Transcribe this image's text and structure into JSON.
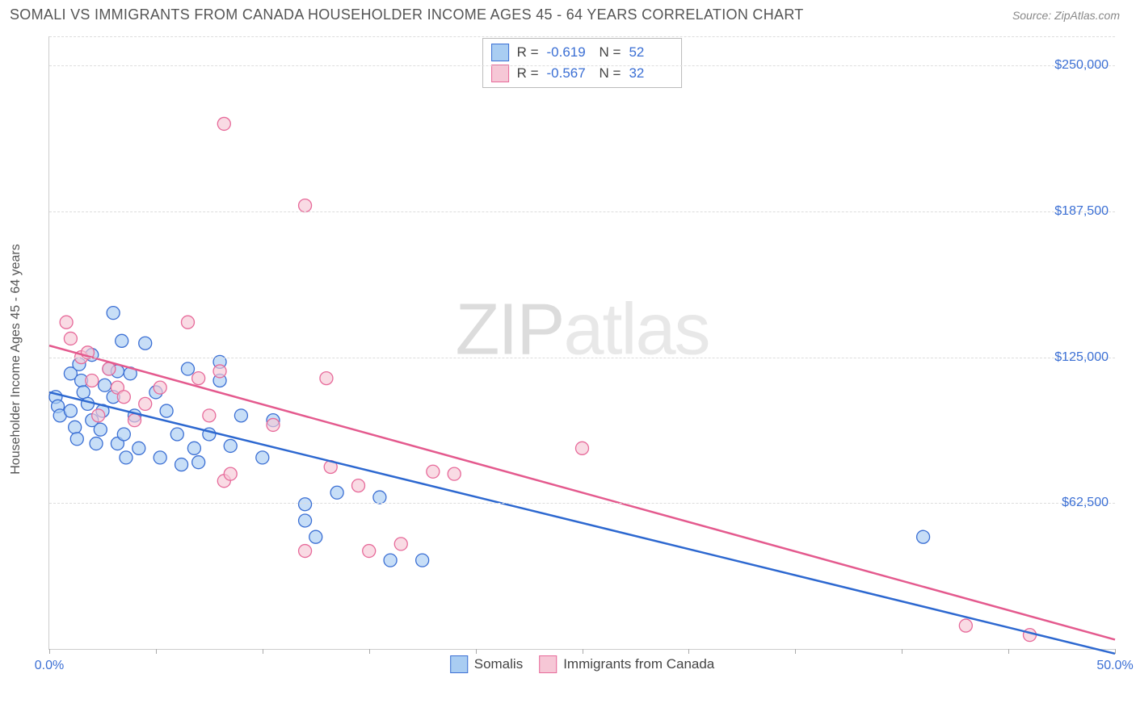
{
  "header": {
    "title": "SOMALI VS IMMIGRANTS FROM CANADA HOUSEHOLDER INCOME AGES 45 - 64 YEARS CORRELATION CHART",
    "source": "Source: ZipAtlas.com"
  },
  "watermark": {
    "zip": "ZIP",
    "atlas": "atlas"
  },
  "chart": {
    "type": "scatter",
    "ylabel": "Householder Income Ages 45 - 64 years",
    "xlim": [
      0,
      50
    ],
    "ylim": [
      0,
      262500
    ],
    "background_color": "#ffffff",
    "grid_color": "#dddddd",
    "grid_dash": true,
    "axis_color": "#cccccc",
    "tick_font_size": 16,
    "tick_color": "#3b6fd4",
    "label_color": "#555555",
    "label_font_size": 16,
    "marker_radius": 8,
    "marker_opacity": 0.65,
    "y_ticks": [
      {
        "value": 62500,
        "label": "$62,500"
      },
      {
        "value": 125000,
        "label": "$125,000"
      },
      {
        "value": 187500,
        "label": "$187,500"
      },
      {
        "value": 250000,
        "label": "$250,000"
      },
      {
        "value": 262500,
        "label": ""
      }
    ],
    "x_ticks": [
      {
        "value": 0,
        "label": "0.0%"
      },
      {
        "value": 5,
        "label": ""
      },
      {
        "value": 10,
        "label": ""
      },
      {
        "value": 15,
        "label": ""
      },
      {
        "value": 20,
        "label": ""
      },
      {
        "value": 25,
        "label": ""
      },
      {
        "value": 30,
        "label": ""
      },
      {
        "value": 35,
        "label": ""
      },
      {
        "value": 40,
        "label": ""
      },
      {
        "value": 45,
        "label": ""
      },
      {
        "value": 50,
        "label": "50.0%"
      }
    ],
    "series": [
      {
        "name": "Somalis",
        "fill_color": "#a9cdf2",
        "stroke_color": "#3b6fd4",
        "trend_line_color": "#2d68d0",
        "trend_line_width": 2.5,
        "R": "-0.619",
        "N": "52",
        "trend": {
          "x1": 0,
          "y1": 110000,
          "x2": 50,
          "y2": -2000
        },
        "points": [
          [
            0.3,
            108000
          ],
          [
            0.4,
            104000
          ],
          [
            0.5,
            100000
          ],
          [
            1,
            118000
          ],
          [
            1,
            102000
          ],
          [
            1.2,
            95000
          ],
          [
            1.3,
            90000
          ],
          [
            1.4,
            122000
          ],
          [
            1.5,
            115000
          ],
          [
            1.6,
            110000
          ],
          [
            1.8,
            105000
          ],
          [
            2,
            126000
          ],
          [
            2,
            98000
          ],
          [
            2.2,
            88000
          ],
          [
            2.4,
            94000
          ],
          [
            2.5,
            102000
          ],
          [
            2.6,
            113000
          ],
          [
            2.8,
            120000
          ],
          [
            3,
            144000
          ],
          [
            3,
            108000
          ],
          [
            3.2,
            88000
          ],
          [
            3.4,
            132000
          ],
          [
            3.5,
            92000
          ],
          [
            3.6,
            82000
          ],
          [
            3.8,
            118000
          ],
          [
            4,
            100000
          ],
          [
            4.2,
            86000
          ],
          [
            4.5,
            131000
          ],
          [
            5,
            110000
          ],
          [
            5.2,
            82000
          ],
          [
            5.5,
            102000
          ],
          [
            6,
            92000
          ],
          [
            6.2,
            79000
          ],
          [
            6.5,
            120000
          ],
          [
            6.8,
            86000
          ],
          [
            7,
            80000
          ],
          [
            7.5,
            92000
          ],
          [
            8,
            115000
          ],
          [
            8.5,
            87000
          ],
          [
            9,
            100000
          ],
          [
            10,
            82000
          ],
          [
            10.5,
            98000
          ],
          [
            12,
            62000
          ],
          [
            12,
            55000
          ],
          [
            12.5,
            48000
          ],
          [
            13.5,
            67000
          ],
          [
            15.5,
            65000
          ],
          [
            16,
            38000
          ],
          [
            17.5,
            38000
          ],
          [
            8,
            123000
          ],
          [
            3.2,
            119000
          ],
          [
            41,
            48000
          ]
        ]
      },
      {
        "name": "Immigrants from Canada",
        "fill_color": "#f6c7d6",
        "stroke_color": "#e76a9a",
        "trend_line_color": "#e45a8e",
        "trend_line_width": 2.5,
        "R": "-0.567",
        "N": "32",
        "trend": {
          "x1": 0,
          "y1": 130000,
          "x2": 50,
          "y2": 4000
        },
        "points": [
          [
            0.8,
            140000
          ],
          [
            1,
            133000
          ],
          [
            1.5,
            125000
          ],
          [
            1.8,
            127000
          ],
          [
            2,
            115000
          ],
          [
            2.3,
            100000
          ],
          [
            2.8,
            120000
          ],
          [
            3.2,
            112000
          ],
          [
            3.5,
            108000
          ],
          [
            4,
            98000
          ],
          [
            4.5,
            105000
          ],
          [
            5.2,
            112000
          ],
          [
            6.5,
            140000
          ],
          [
            7,
            116000
          ],
          [
            7.5,
            100000
          ],
          [
            8,
            119000
          ],
          [
            8.2,
            225000
          ],
          [
            8.2,
            72000
          ],
          [
            10.5,
            96000
          ],
          [
            12,
            190000
          ],
          [
            12,
            42000
          ],
          [
            13,
            116000
          ],
          [
            13.2,
            78000
          ],
          [
            14.5,
            70000
          ],
          [
            15,
            42000
          ],
          [
            16.5,
            45000
          ],
          [
            18,
            76000
          ],
          [
            19,
            75000
          ],
          [
            25,
            86000
          ],
          [
            43,
            10000
          ],
          [
            46,
            6000
          ],
          [
            8.5,
            75000
          ]
        ]
      }
    ]
  },
  "legend_top": {
    "r_label": "R =",
    "n_label": "N ="
  },
  "legend_bottom": {
    "items": [
      {
        "label": "Somalis",
        "series_idx": 0
      },
      {
        "label": "Immigrants from Canada",
        "series_idx": 1
      }
    ]
  }
}
